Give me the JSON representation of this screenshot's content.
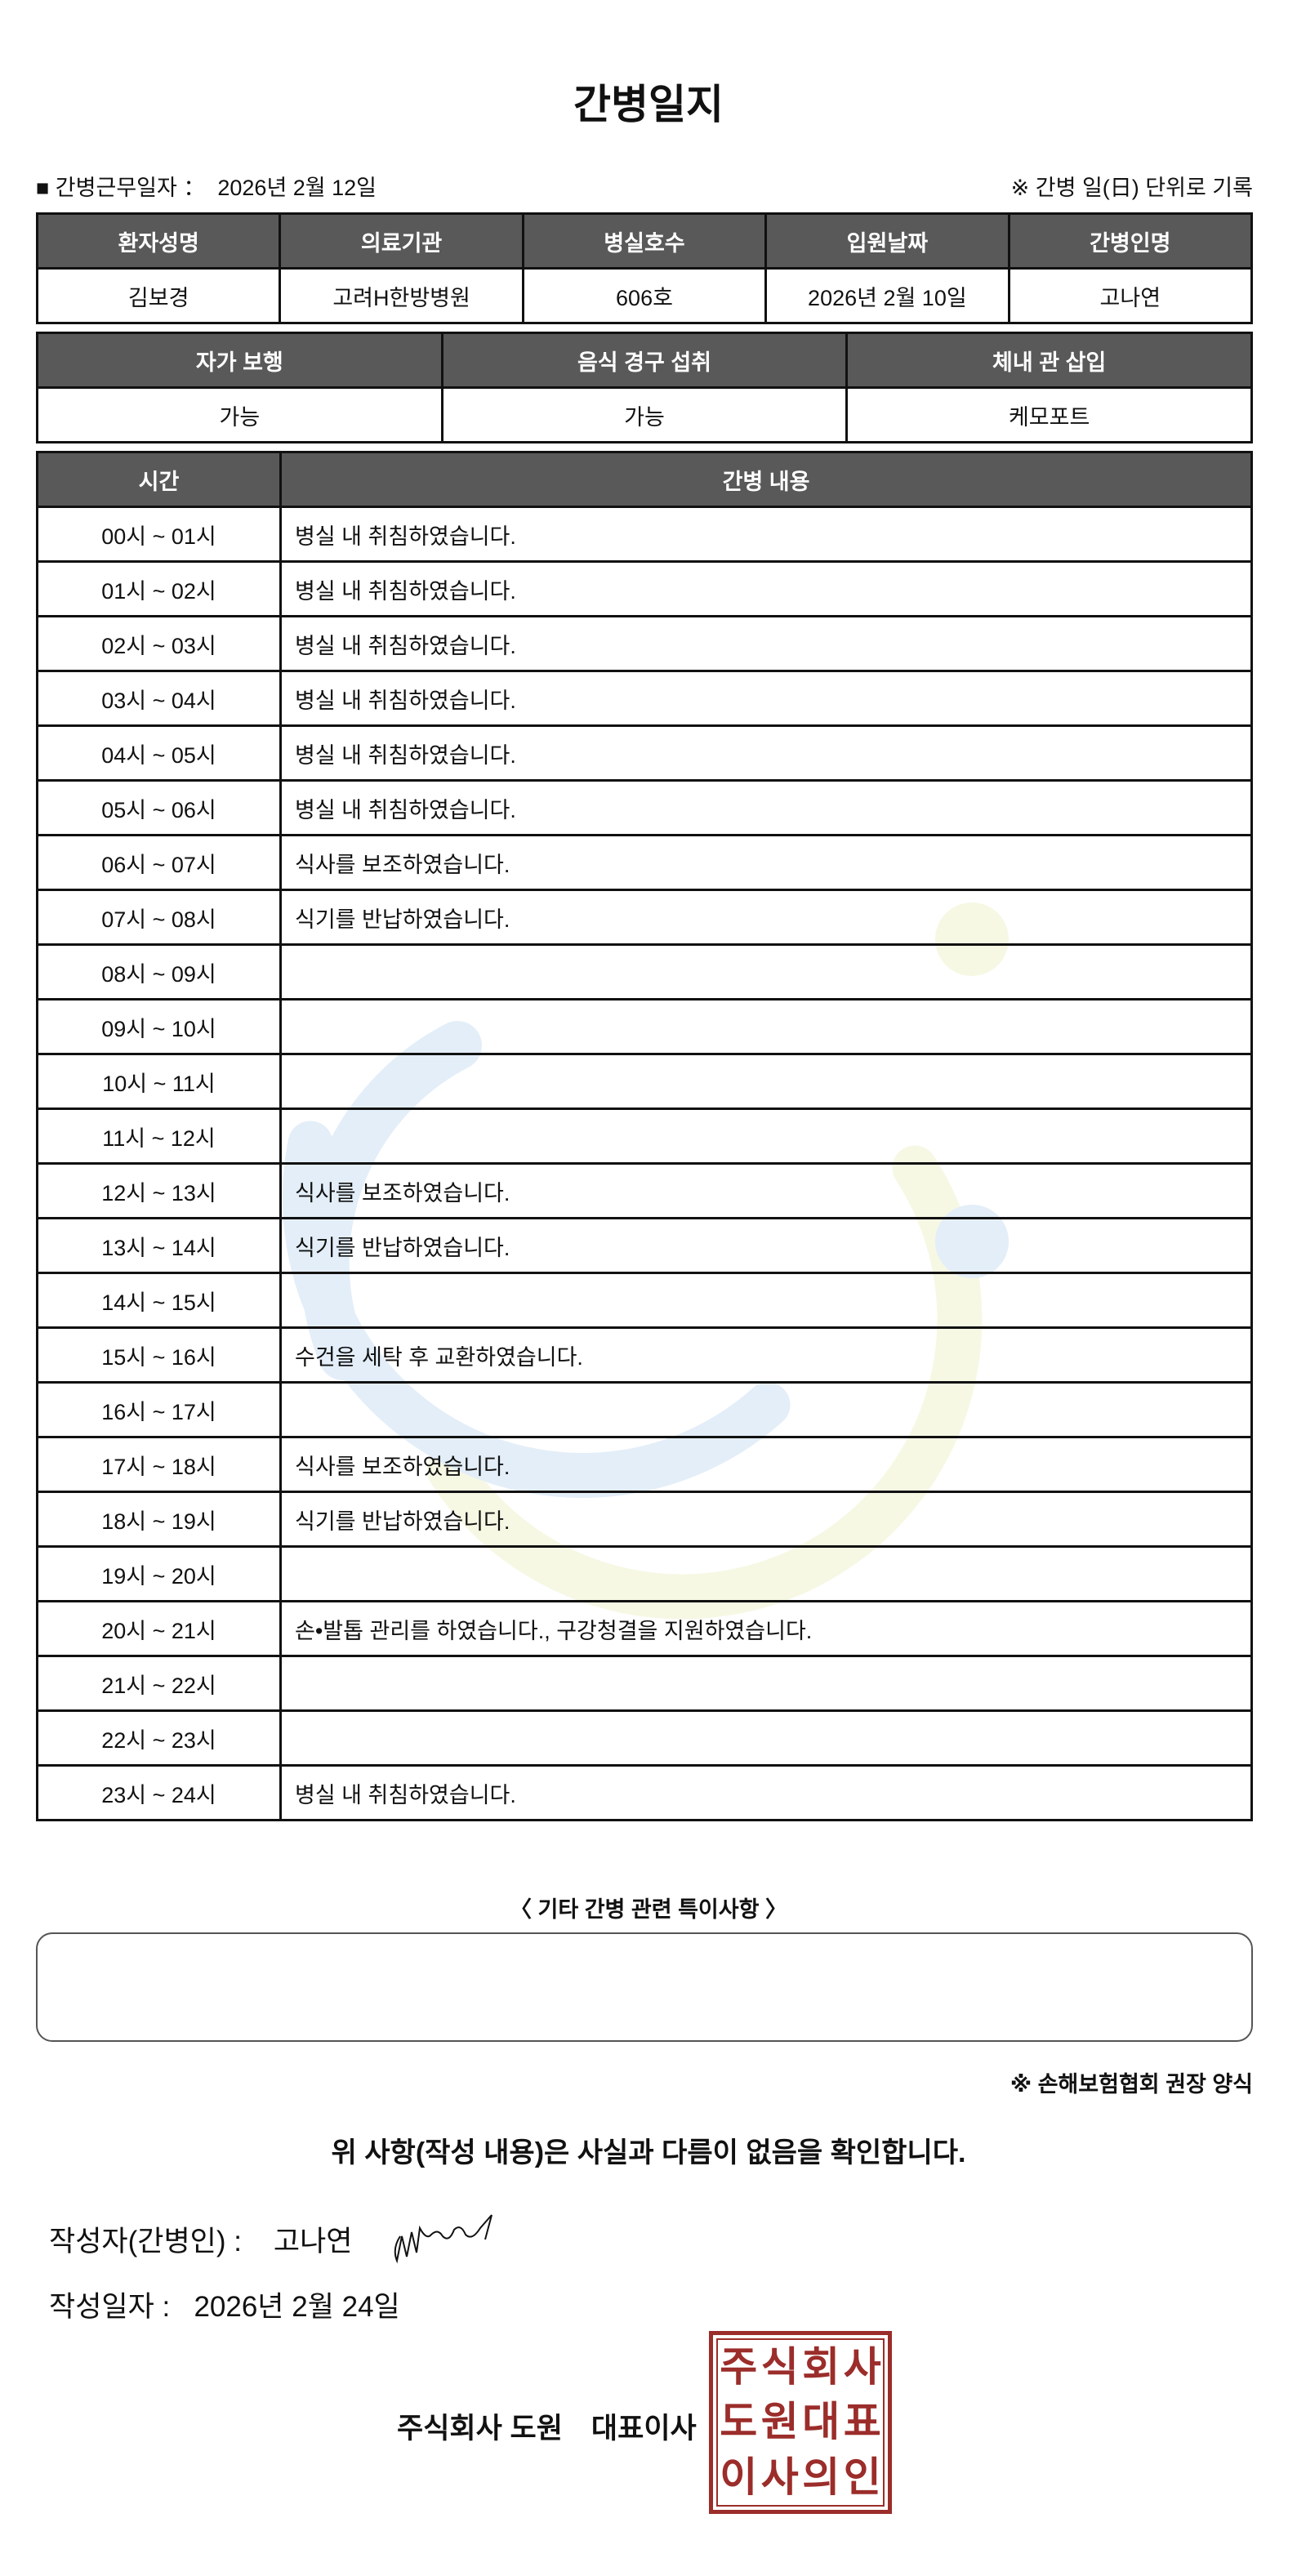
{
  "title": "간병일지",
  "work_date": {
    "label": "■ 간병근무일자 ：",
    "value": "2026년 2월 12일"
  },
  "note_top": "※ 간병 일(日) 단위로 기록",
  "info_table": {
    "headers": [
      "환자성명",
      "의료기관",
      "병실호수",
      "입원날짜",
      "간병인명"
    ],
    "values": [
      "김보경",
      "고려H한방병원",
      "606호",
      "2026년 2월 10일",
      "고나연"
    ]
  },
  "status_table": {
    "headers": [
      "자가 보행",
      "음식 경구 섭취",
      "체내 관 삽입"
    ],
    "values": [
      "가능",
      "가능",
      "케모포트"
    ]
  },
  "care_table": {
    "headers": [
      "시간",
      "간병 내용"
    ],
    "rows": [
      {
        "time": "00시 ~ 01시",
        "content": "병실 내 취침하였습니다."
      },
      {
        "time": "01시 ~ 02시",
        "content": "병실 내 취침하였습니다."
      },
      {
        "time": "02시 ~ 03시",
        "content": "병실 내 취침하였습니다."
      },
      {
        "time": "03시 ~ 04시",
        "content": "병실 내 취침하였습니다."
      },
      {
        "time": "04시 ~ 05시",
        "content": "병실 내 취침하였습니다."
      },
      {
        "time": "05시 ~ 06시",
        "content": "병실 내 취침하였습니다."
      },
      {
        "time": "06시 ~ 07시",
        "content": "식사를 보조하였습니다."
      },
      {
        "time": "07시 ~ 08시",
        "content": "식기를 반납하였습니다."
      },
      {
        "time": "08시 ~ 09시",
        "content": ""
      },
      {
        "time": "09시 ~ 10시",
        "content": ""
      },
      {
        "time": "10시 ~ 11시",
        "content": ""
      },
      {
        "time": "11시 ~ 12시",
        "content": ""
      },
      {
        "time": "12시 ~ 13시",
        "content": "식사를 보조하였습니다."
      },
      {
        "time": "13시 ~ 14시",
        "content": "식기를 반납하였습니다."
      },
      {
        "time": "14시 ~ 15시",
        "content": ""
      },
      {
        "time": "15시 ~ 16시",
        "content": "수건을 세탁 후 교환하였습니다."
      },
      {
        "time": "16시 ~ 17시",
        "content": ""
      },
      {
        "time": "17시 ~ 18시",
        "content": "식사를 보조하였습니다."
      },
      {
        "time": "18시 ~ 19시",
        "content": "식기를 반납하였습니다."
      },
      {
        "time": "19시 ~ 20시",
        "content": ""
      },
      {
        "time": "20시 ~ 21시",
        "content": "손•발톱 관리를 하였습니다., 구강청결을 지원하였습니다."
      },
      {
        "time": "21시 ~ 22시",
        "content": ""
      },
      {
        "time": "22시 ~ 23시",
        "content": ""
      },
      {
        "time": "23시 ~ 24시",
        "content": "병실 내 취침하였습니다."
      }
    ]
  },
  "remarks": {
    "title": "〈 기타 간병 관련 특이사항 〉",
    "value": ""
  },
  "note_bottom": "※ 손해보험협회 권장 양식",
  "confirm": "위 사항(작성 내용)은 사실과 다름이 없음을 확인합니다.",
  "writer": {
    "label": "작성자(간병인) :",
    "value": "고나연"
  },
  "write_date": {
    "label": "작성일자 :",
    "value": "2026년 2월 24일"
  },
  "company": "주식회사 도원　대표이사",
  "stamp_text": "주식회사도원대표이사의인",
  "colors": {
    "header_bg": "#595959",
    "stamp": "#9b2d2a",
    "watermark_blue": "#e3eef8",
    "watermark_yellow": "#f6f8e4"
  }
}
